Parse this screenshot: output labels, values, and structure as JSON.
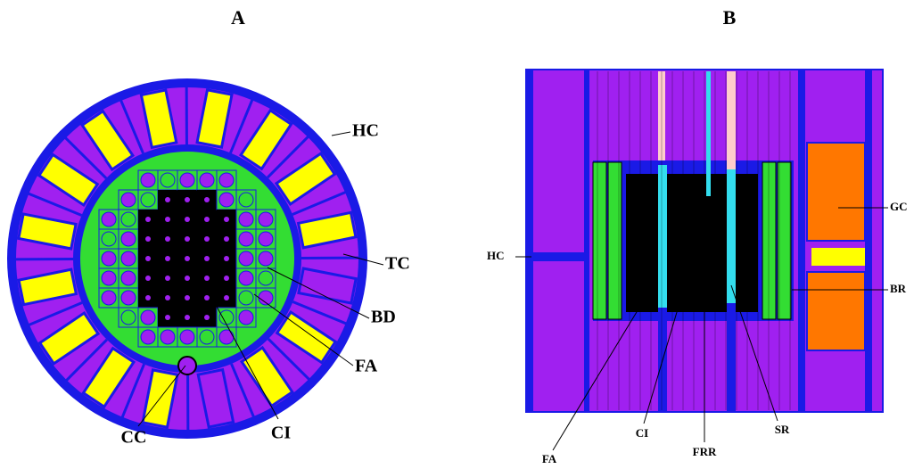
{
  "panel_a": {
    "title": "A",
    "labels": [
      "HC",
      "TC",
      "BD",
      "FA",
      "CC",
      "CI"
    ]
  },
  "panel_b": {
    "title": "B",
    "labels": [
      "HC",
      "GC",
      "BR",
      "SR",
      "FRR",
      "CI",
      "FA"
    ]
  }
}
